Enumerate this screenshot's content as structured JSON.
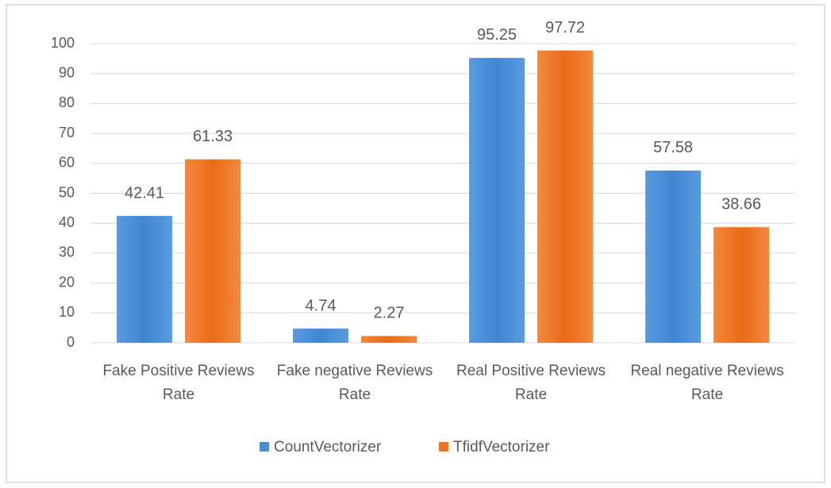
{
  "chart_data": {
    "type": "bar",
    "categories": [
      "Fake Positive Reviews Rate",
      "Fake negative Reviews Rate",
      "Real Positive Reviews Rate",
      "Real negative Reviews Rate"
    ],
    "series": [
      {
        "name": "CountVectorizer",
        "color": "#4a8ed4",
        "values": [
          42.41,
          4.74,
          95.25,
          57.58
        ]
      },
      {
        "name": "TfidfVectorizer",
        "color": "#ee7322",
        "values": [
          61.33,
          2.27,
          97.72,
          38.66
        ]
      }
    ],
    "ylim": [
      0,
      100
    ],
    "yticks": [
      0,
      10,
      20,
      30,
      40,
      50,
      60,
      70,
      80,
      90,
      100
    ],
    "grid": true,
    "legend": "bottom"
  }
}
